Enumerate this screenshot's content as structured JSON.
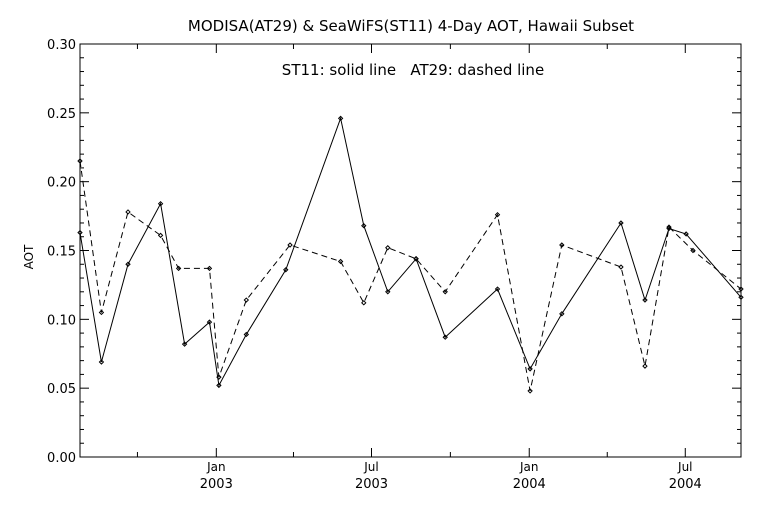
{
  "chart_data": {
    "type": "line",
    "title": "MODISA(AT29) & SeaWiFS(ST11) 4-Day AOT, Hawaii Subset",
    "annotation": "ST11: solid line   AT29: dashed line",
    "ylabel": "AOT",
    "xlabel": "",
    "ylim": [
      0.0,
      0.3
    ],
    "xlim": [
      "2002-07-26",
      "2004-09-04"
    ],
    "y_ticks": [
      "0.00",
      "0.05",
      "0.10",
      "0.15",
      "0.20",
      "0.25",
      "0.30"
    ],
    "x_ticks": [
      {
        "date": "2003-01-01",
        "month": "Jan",
        "year": "2003"
      },
      {
        "date": "2003-07-01",
        "month": "Jul",
        "year": "2003"
      },
      {
        "date": "2004-01-01",
        "month": "Jan",
        "year": "2004"
      },
      {
        "date": "2004-07-01",
        "month": "Jul",
        "year": "2004"
      }
    ],
    "minor_tick_dates": [
      "2002-10-01",
      "2003-04-01",
      "2003-10-01",
      "2004-04-01"
    ],
    "grid": false,
    "series": [
      {
        "name": "ST11",
        "style": "solid",
        "points": [
          [
            "2002-07-26",
            0.163
          ],
          [
            "2002-08-20",
            0.069
          ],
          [
            "2002-09-20",
            0.14
          ],
          [
            "2002-10-28",
            0.184
          ],
          [
            "2002-11-25",
            0.082
          ],
          [
            "2002-12-24",
            0.098
          ],
          [
            "2003-01-04",
            0.052
          ],
          [
            "2003-02-05",
            0.089
          ],
          [
            "2003-03-23",
            0.136
          ],
          [
            "2003-05-26",
            0.246
          ],
          [
            "2003-06-22",
            0.168
          ],
          [
            "2003-07-20",
            0.12
          ],
          [
            "2003-08-22",
            0.144
          ],
          [
            "2003-09-25",
            0.087
          ],
          [
            "2003-11-25",
            0.122
          ],
          [
            "2004-01-02",
            0.064
          ],
          [
            "2004-02-08",
            0.104
          ],
          [
            "2004-04-17",
            0.17
          ],
          [
            "2004-05-15",
            0.114
          ],
          [
            "2004-06-12",
            0.166
          ],
          [
            "2004-07-02",
            0.162
          ],
          [
            "2004-09-04",
            0.116
          ]
        ]
      },
      {
        "name": "AT29",
        "style": "dashed",
        "points": [
          [
            "2002-07-26",
            0.215
          ],
          [
            "2002-08-20",
            0.105
          ],
          [
            "2002-09-20",
            0.178
          ],
          [
            "2002-10-28",
            0.161
          ],
          [
            "2002-11-18",
            0.137
          ],
          [
            "2002-12-24",
            0.137
          ],
          [
            "2003-01-04",
            0.058
          ],
          [
            "2003-02-05",
            0.114
          ],
          [
            "2003-03-28",
            0.154
          ],
          [
            "2003-05-26",
            0.142
          ],
          [
            "2003-06-22",
            0.112
          ],
          [
            "2003-07-20",
            0.152
          ],
          [
            "2003-08-22",
            0.144
          ],
          [
            "2003-09-25",
            0.12
          ],
          [
            "2003-11-25",
            0.176
          ],
          [
            "2004-01-02",
            0.048
          ],
          [
            "2004-02-08",
            0.154
          ],
          [
            "2004-04-17",
            0.138
          ],
          [
            "2004-05-15",
            0.066
          ],
          [
            "2004-06-12",
            0.167
          ],
          [
            "2004-07-10",
            0.15
          ],
          [
            "2004-09-04",
            0.122
          ]
        ]
      }
    ]
  }
}
